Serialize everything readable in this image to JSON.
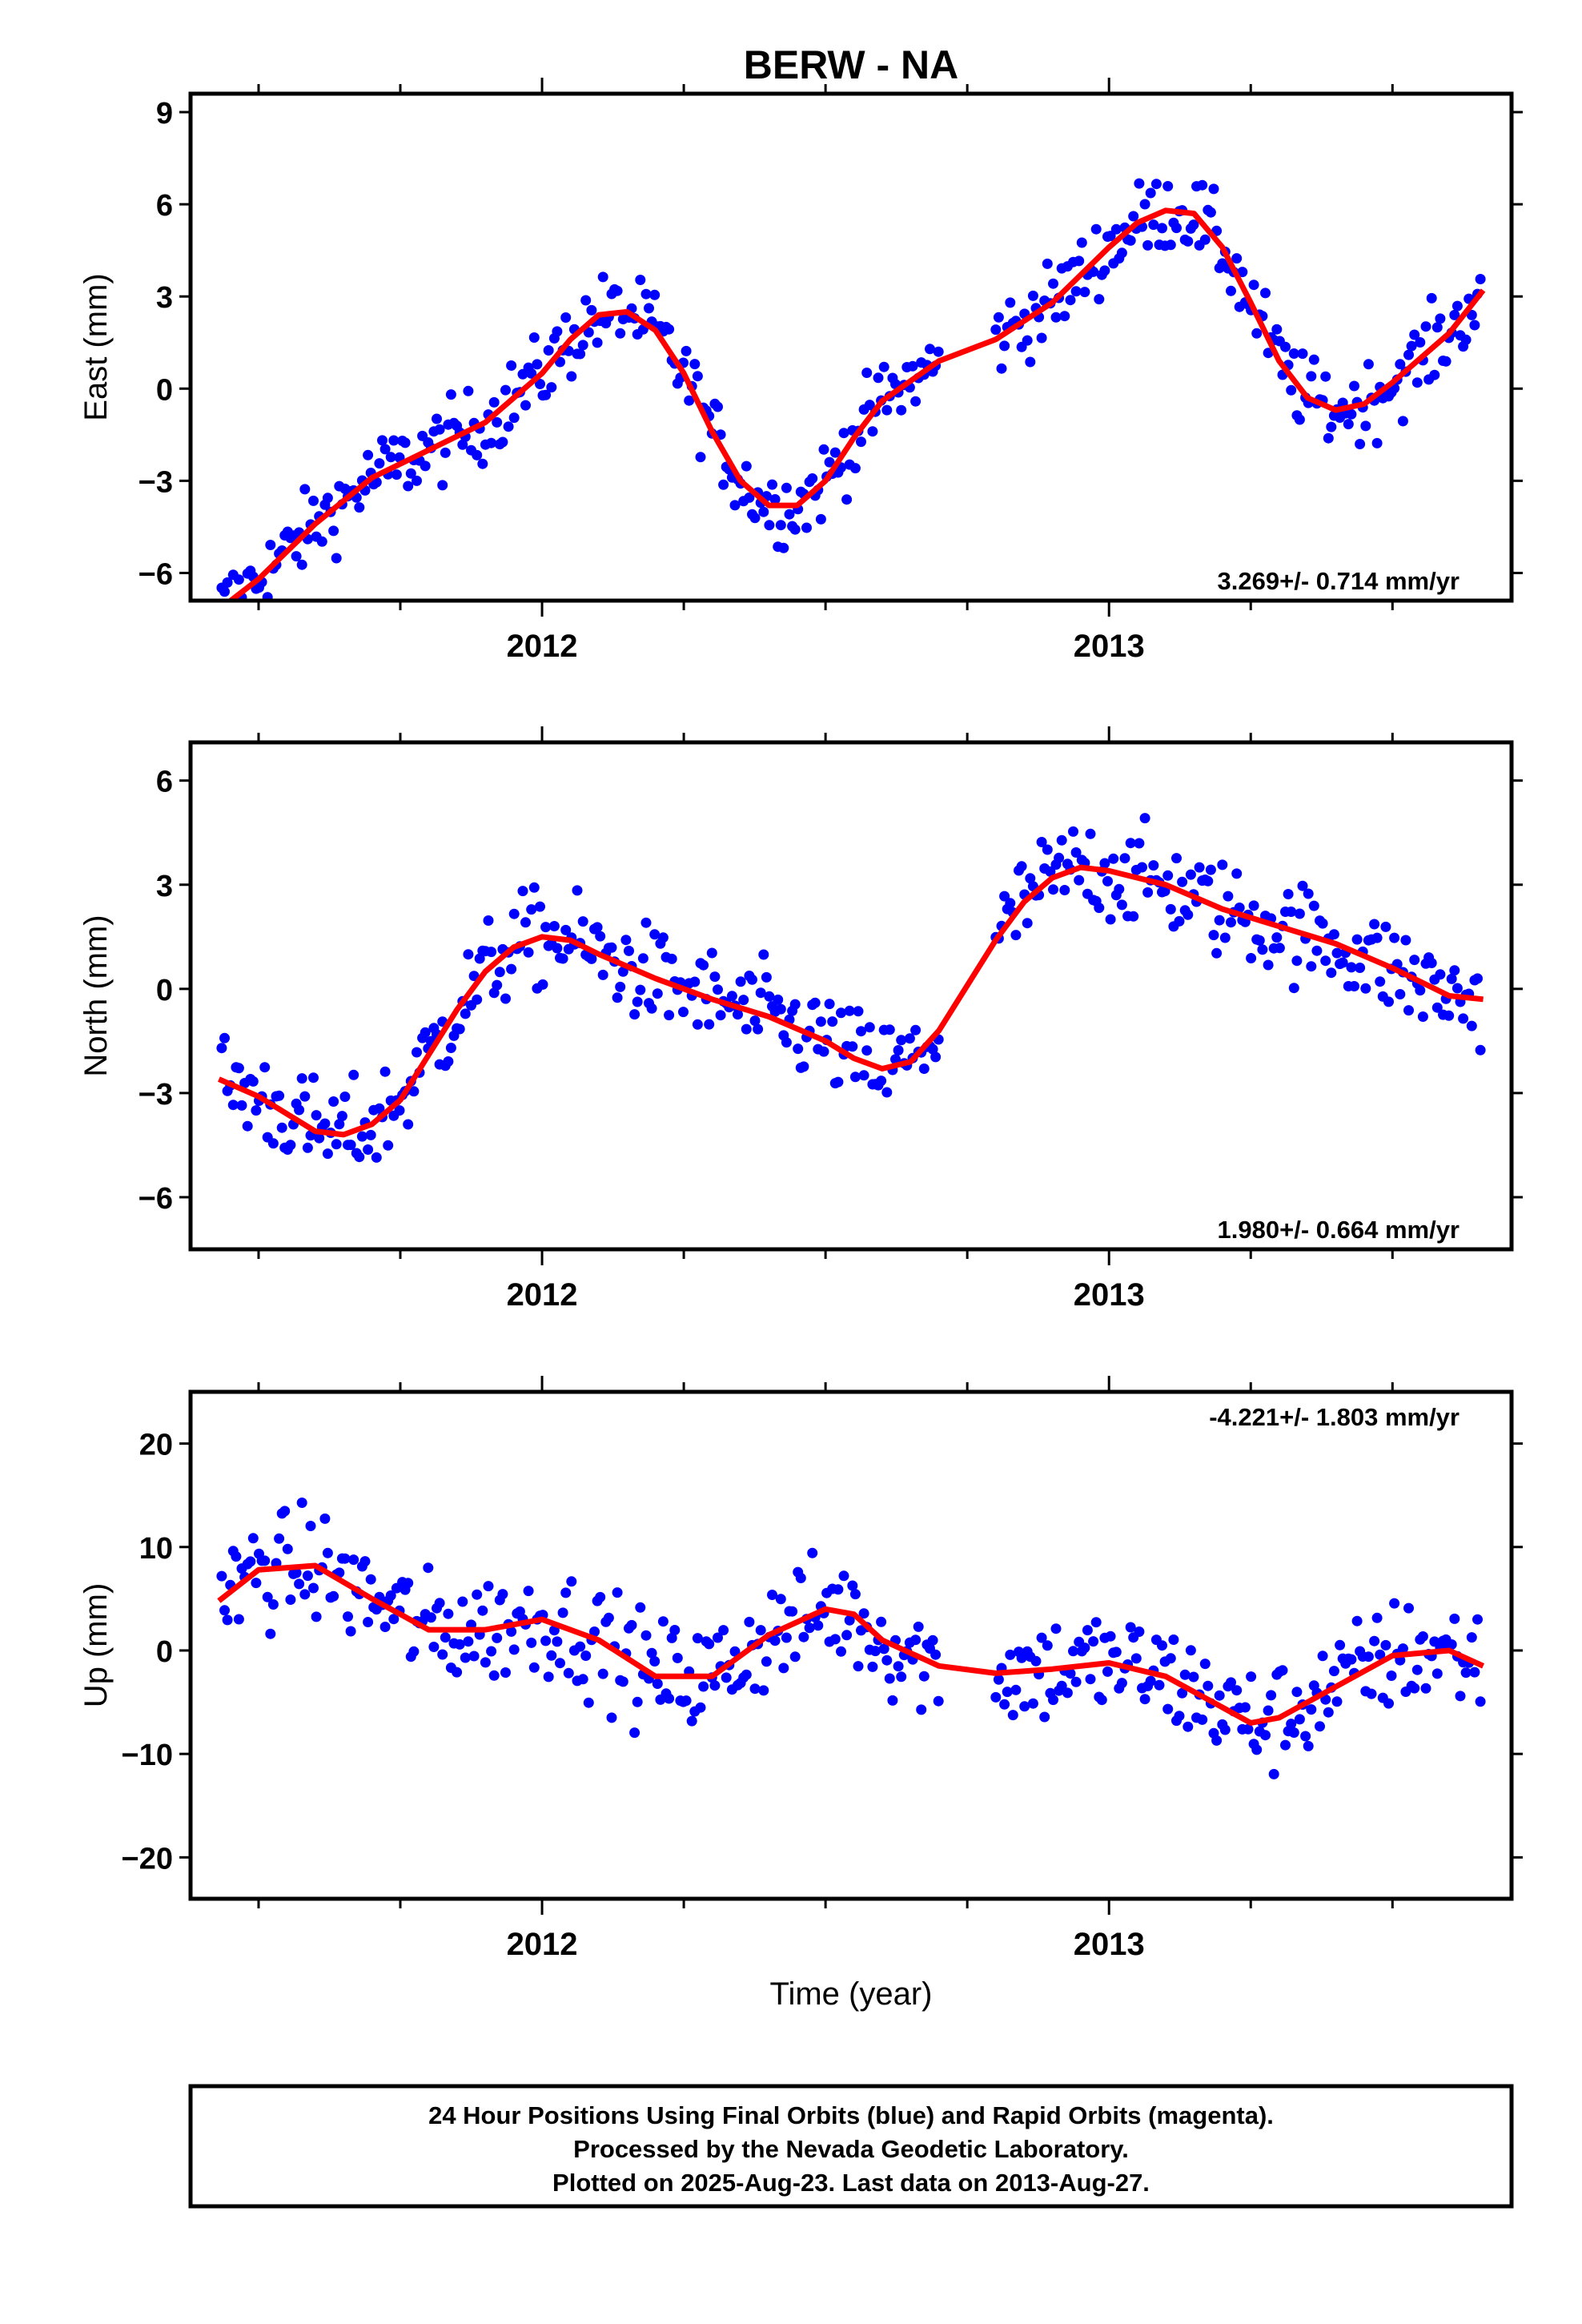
{
  "title": "BERW - NA",
  "x_axis_label": "Time (year)",
  "footer": {
    "line1": "24 Hour Positions Using Final Orbits (blue) and Rapid Orbits (magenta).",
    "line2": "Processed by the Nevada Geodetic Laboratory.",
    "line3": "Plotted on 2025-Aug-23. Last data on 2013-Aug-27."
  },
  "colors": {
    "points_final": "#0000ff",
    "model_line": "#ff0000",
    "frame": "#000000"
  },
  "chart_data": [
    {
      "type": "scatter",
      "panel": "east",
      "ylabel": "East (mm)",
      "rate_label": "3.269+/- 0.714 mm/yr",
      "rate_position": "bottom-right",
      "xlim": [
        2011.38,
        2013.71
      ],
      "ylim": [
        -6.9,
        9.6
      ],
      "yticks": [
        -6,
        -3,
        0,
        3,
        6,
        9
      ],
      "ytick_labels": [
        "−6",
        "−3",
        "0",
        "3",
        "6",
        "9"
      ],
      "xticks_major": [
        2012,
        2013
      ],
      "xtick_labels": [
        "2012",
        "2013"
      ],
      "model_curve": {
        "x": [
          2011.43,
          2011.5,
          2011.6,
          2011.7,
          2011.8,
          2011.9,
          2012.0,
          2012.05,
          2012.1,
          2012.15,
          2012.2,
          2012.25,
          2012.3,
          2012.35,
          2012.4,
          2012.45,
          2012.5,
          2012.55,
          2012.6,
          2012.7,
          2012.8,
          2012.9,
          2013.0,
          2013.05,
          2013.1,
          2013.15,
          2013.2,
          2013.25,
          2013.3,
          2013.35,
          2013.4,
          2013.45,
          2013.5,
          2013.55,
          2013.6,
          2013.66
        ],
        "y": [
          -7.2,
          -6.2,
          -4.4,
          -2.9,
          -2.0,
          -1.1,
          0.5,
          1.6,
          2.4,
          2.5,
          1.9,
          0.5,
          -1.4,
          -3.0,
          -3.8,
          -3.8,
          -3.0,
          -1.6,
          -0.4,
          0.9,
          1.6,
          2.8,
          4.6,
          5.4,
          5.8,
          5.7,
          4.6,
          2.8,
          0.9,
          -0.3,
          -0.7,
          -0.5,
          0.2,
          1.0,
          1.8,
          3.2
        ]
      },
      "points": {
        "x_start": 2011.435,
        "x_end": 2013.655,
        "count": 440,
        "segments": [
          [
            2011.435,
            2012.7
          ],
          [
            2012.8,
            2013.655
          ]
        ],
        "noise_mm": 0.9,
        "color": "blue"
      }
    },
    {
      "type": "scatter",
      "panel": "north",
      "ylabel": "North (mm)",
      "rate_label": "1.980+/- 0.664 mm/yr",
      "rate_position": "bottom-right",
      "xlim": [
        2011.38,
        2013.71
      ],
      "ylim": [
        -7.5,
        7.1
      ],
      "yticks": [
        -6,
        -3,
        0,
        3,
        6
      ],
      "ytick_labels": [
        "−6",
        "−3",
        "0",
        "3",
        "6"
      ],
      "xticks_major": [
        2012,
        2013
      ],
      "xtick_labels": [
        "2012",
        "2013"
      ],
      "model_curve": {
        "x": [
          2011.43,
          2011.5,
          2011.6,
          2011.65,
          2011.7,
          2011.75,
          2011.8,
          2011.85,
          2011.9,
          2011.95,
          2012.0,
          2012.05,
          2012.1,
          2012.2,
          2012.3,
          2012.4,
          2012.5,
          2012.55,
          2012.6,
          2012.65,
          2012.7,
          2012.75,
          2012.8,
          2012.85,
          2012.9,
          2012.95,
          2013.0,
          2013.05,
          2013.1,
          2013.2,
          2013.3,
          2013.4,
          2013.5,
          2013.6,
          2013.66
        ],
        "y": [
          -2.6,
          -3.1,
          -4.1,
          -4.2,
          -3.9,
          -3.2,
          -1.9,
          -0.6,
          0.5,
          1.2,
          1.5,
          1.4,
          1.0,
          0.3,
          -0.3,
          -0.8,
          -1.5,
          -2.0,
          -2.3,
          -2.1,
          -1.2,
          0.1,
          1.4,
          2.5,
          3.2,
          3.5,
          3.4,
          3.2,
          3.0,
          2.3,
          1.8,
          1.3,
          0.6,
          -0.2,
          -0.3
        ]
      },
      "points": {
        "x_start": 2011.435,
        "x_end": 2013.655,
        "count": 440,
        "segments": [
          [
            2011.435,
            2012.7
          ],
          [
            2012.8,
            2013.655
          ]
        ],
        "noise_mm": 1.0,
        "color": "blue"
      }
    },
    {
      "type": "scatter",
      "panel": "up",
      "ylabel": "Up (mm)",
      "rate_label": "-4.221+/- 1.803 mm/yr",
      "rate_position": "top-right",
      "xlim": [
        2011.38,
        2013.71
      ],
      "ylim": [
        -24,
        25
      ],
      "yticks": [
        -20,
        -10,
        0,
        10,
        20
      ],
      "ytick_labels": [
        "−20",
        "−10",
        "0",
        "10",
        "20"
      ],
      "xticks_major": [
        2012,
        2013
      ],
      "xtick_labels": [
        "2012",
        "2013"
      ],
      "model_curve": {
        "x": [
          2011.43,
          2011.5,
          2011.6,
          2011.7,
          2011.8,
          2011.9,
          2012.0,
          2012.1,
          2012.2,
          2012.3,
          2012.4,
          2012.5,
          2012.55,
          2012.6,
          2012.7,
          2012.8,
          2012.9,
          2013.0,
          2013.1,
          2013.2,
          2013.25,
          2013.3,
          2013.4,
          2013.5,
          2013.6,
          2013.66
        ],
        "y": [
          4.8,
          7.8,
          8.2,
          5.0,
          2.0,
          2.0,
          3.0,
          1.0,
          -2.5,
          -2.5,
          1.5,
          4.0,
          3.5,
          1.0,
          -1.5,
          -2.2,
          -1.8,
          -1.2,
          -2.5,
          -5.5,
          -7.0,
          -6.5,
          -3.5,
          -0.5,
          0.0,
          -1.5
        ]
      },
      "points": {
        "x_start": 2011.435,
        "x_end": 2013.655,
        "count": 440,
        "segments": [
          [
            2011.435,
            2012.7
          ],
          [
            2012.8,
            2013.655
          ]
        ],
        "noise_mm": 3.8,
        "color": "blue"
      }
    }
  ]
}
